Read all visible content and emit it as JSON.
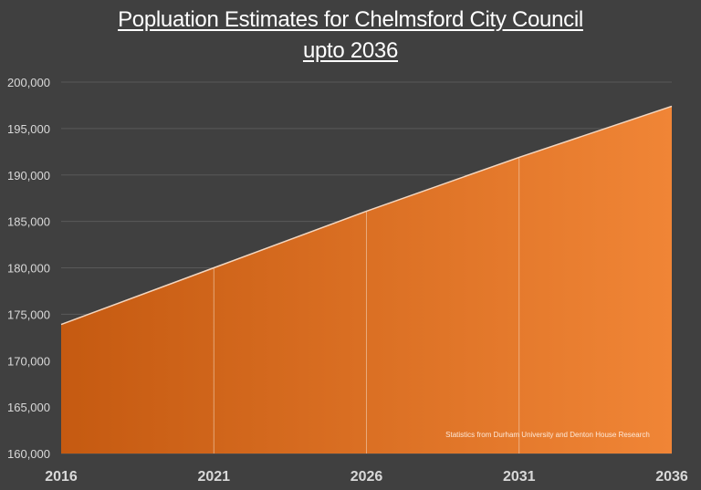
{
  "chart_data": {
    "type": "area",
    "title": [
      "Popluation Estimates for Chelmsford City Council",
      "upto 2036"
    ],
    "categories": [
      "2016",
      "2021",
      "2026",
      "2031",
      "2036"
    ],
    "values": [
      173900,
      180000,
      186100,
      191900,
      197400
    ],
    "ylim": [
      160000,
      200000
    ],
    "yticks": [
      "160,000",
      "165,000",
      "170,000",
      "175,000",
      "180,000",
      "185,000",
      "190,000",
      "195,000",
      "200,000"
    ],
    "ytick_values": [
      160000,
      165000,
      170000,
      175000,
      180000,
      185000,
      190000,
      195000,
      200000
    ],
    "grid": true,
    "annotation": "Statistics from Durham University and Denton House Research",
    "colors": {
      "background": "#404040",
      "fill_start": "#c55a11",
      "fill_end": "#f08536",
      "line": "#f4d7c0",
      "grid": "#595959",
      "text": "#d9d9d9"
    }
  }
}
